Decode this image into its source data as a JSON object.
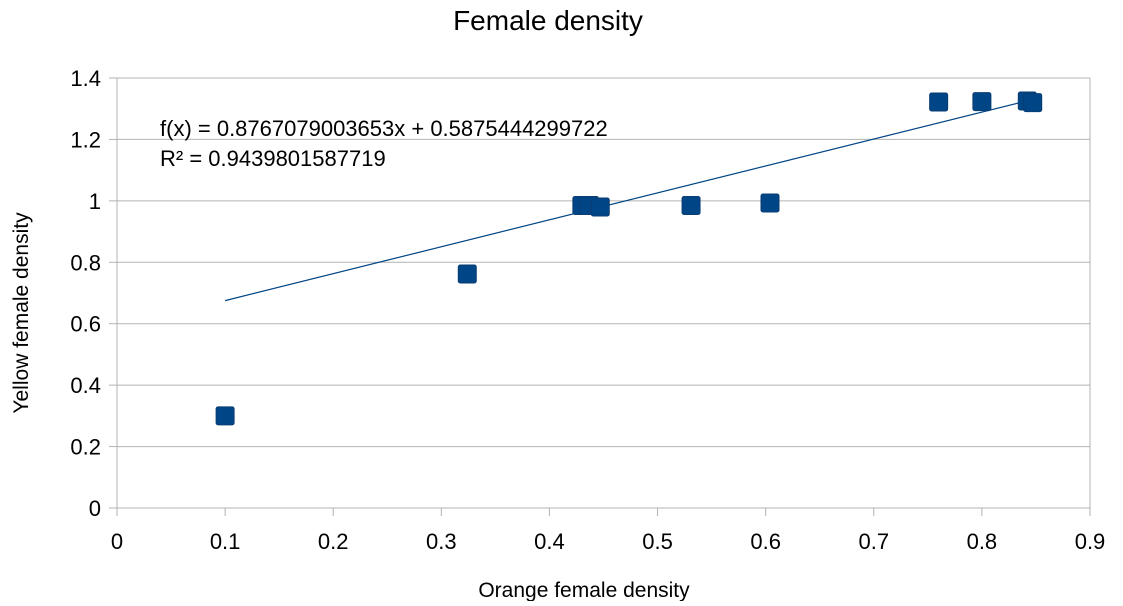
{
  "chart_data": {
    "type": "scatter",
    "title": "Female density",
    "xlabel": "Orange female density",
    "ylabel": "Yellow female density",
    "xlim": [
      0,
      0.9
    ],
    "ylim": [
      0,
      1.4
    ],
    "x_ticks": [
      "0",
      "0.1",
      "0.2",
      "0.3",
      "0.4",
      "0.5",
      "0.6",
      "0.7",
      "0.8",
      "0.9"
    ],
    "y_ticks": [
      "0",
      "0.2",
      "0.4",
      "0.6",
      "0.8",
      "1",
      "1.2",
      "1.4"
    ],
    "x_tick_values": [
      0,
      0.1,
      0.2,
      0.3,
      0.4,
      0.5,
      0.6,
      0.7,
      0.8,
      0.9
    ],
    "y_tick_values": [
      0,
      0.2,
      0.4,
      0.6,
      0.8,
      1.0,
      1.2,
      1.4
    ],
    "grid": "horizontal",
    "legend": "none",
    "marker": "square",
    "series": [
      {
        "color": "#004586",
        "points": [
          {
            "x": 0.1,
            "y": 0.3
          },
          {
            "x": 0.324,
            "y": 0.762
          },
          {
            "x": 0.43,
            "y": 0.985
          },
          {
            "x": 0.437,
            "y": 0.985
          },
          {
            "x": 0.447,
            "y": 0.98
          },
          {
            "x": 0.531,
            "y": 0.985
          },
          {
            "x": 0.604,
            "y": 0.993
          },
          {
            "x": 0.76,
            "y": 1.322
          },
          {
            "x": 0.8,
            "y": 1.323
          },
          {
            "x": 0.842,
            "y": 1.325
          },
          {
            "x": 0.847,
            "y": 1.32
          }
        ]
      }
    ],
    "trendline": {
      "type": "linear",
      "slope": 0.8767079003653,
      "intercept": 0.5875444299722,
      "x_range": [
        0.1,
        0.847
      ],
      "color": "#004586",
      "equation": "f(x) = 0.8767079003653x + 0.5875444299722",
      "r_squared": "R² = 0.9439801587719"
    }
  }
}
